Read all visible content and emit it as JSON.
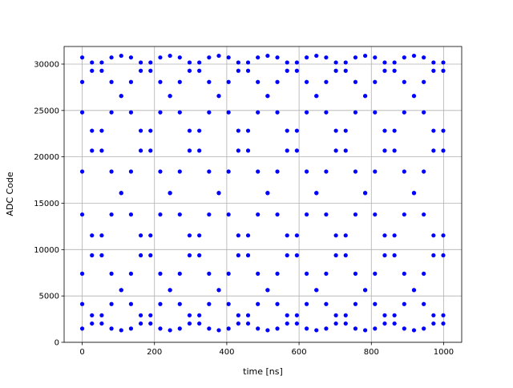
{
  "chart_data": {
    "type": "scatter",
    "x_label": "time [ns]",
    "y_label": "ADC Code",
    "color": "#0000ff",
    "grid": true,
    "xlim": [
      -50,
      1050
    ],
    "ylim": [
      0,
      31900
    ],
    "xticks": [
      0,
      200,
      400,
      600,
      800,
      1000
    ],
    "yticks": [
      0,
      5000,
      10000,
      15000,
      20000,
      25000,
      30000
    ],
    "x": [
      0,
      27,
      54,
      81,
      108,
      135,
      162,
      189,
      216,
      243,
      270,
      297,
      324,
      351,
      378,
      405,
      432,
      459,
      486,
      513,
      540,
      567,
      594,
      621,
      648,
      675,
      702,
      729,
      756,
      783,
      810,
      837,
      864,
      891,
      918,
      945,
      972,
      999
    ],
    "values": [
      [
        30718,
        24799,
        13785,
        4127,
        1482,
        7401,
        18415,
        28073
      ],
      [
        30176,
        22819,
        11527,
        2913,
        2024,
        9381,
        20673,
        29287
      ],
      [
        29287,
        20673,
        9381,
        2024,
        2913,
        11527,
        22819,
        30176
      ],
      [
        28073,
        18415,
        7401,
        1482,
        4127,
        13785,
        24799,
        30718
      ],
      [
        30900,
        26565,
        16100,
        5635,
        1300,
        5635,
        16100,
        26565
      ],
      [
        30718,
        24799,
        13785,
        4127,
        1482,
        7401,
        18415,
        28073
      ],
      [
        30176,
        22819,
        11527,
        2913,
        2024,
        9381,
        20673,
        29287
      ],
      [
        29287,
        20673,
        9381,
        2024,
        2913,
        11527,
        22819,
        30176
      ],
      [
        28073,
        18415,
        7401,
        1482,
        4127,
        13785,
        24799,
        30718
      ],
      [
        30900,
        26565,
        16100,
        5635,
        1300,
        5635,
        16100,
        26565
      ],
      [
        30718,
        24799,
        13785,
        4127,
        1482,
        7401,
        18415,
        28073
      ],
      [
        30176,
        22819,
        11527,
        2913,
        2024,
        9381,
        20673,
        29287
      ],
      [
        29287,
        20673,
        9381,
        2024,
        2913,
        11527,
        22819,
        30176
      ],
      [
        28073,
        18415,
        7401,
        1482,
        4127,
        13785,
        24799,
        30718
      ],
      [
        30900,
        26565,
        16100,
        5635,
        1300,
        5635,
        16100,
        26565
      ],
      [
        30718,
        24799,
        13785,
        4127,
        1482,
        7401,
        18415,
        28073
      ],
      [
        30176,
        22819,
        11527,
        2913,
        2024,
        9381,
        20673,
        29287
      ],
      [
        29287,
        20673,
        9381,
        2024,
        2913,
        11527,
        22819,
        30176
      ],
      [
        28073,
        18415,
        7401,
        1482,
        4127,
        13785,
        24799,
        30718
      ],
      [
        30900,
        26565,
        16100,
        5635,
        1300,
        5635,
        16100,
        26565
      ],
      [
        30718,
        24799,
        13785,
        4127,
        1482,
        7401,
        18415,
        28073
      ],
      [
        30176,
        22819,
        11527,
        2913,
        2024,
        9381,
        20673,
        29287
      ],
      [
        29287,
        20673,
        9381,
        2024,
        2913,
        11527,
        22819,
        30176
      ],
      [
        28073,
        18415,
        7401,
        1482,
        4127,
        13785,
        24799,
        30718
      ],
      [
        30900,
        26565,
        16100,
        5635,
        1300,
        5635,
        16100,
        26565
      ],
      [
        30718,
        24799,
        13785,
        4127,
        1482,
        7401,
        18415,
        28073
      ],
      [
        30176,
        22819,
        11527,
        2913,
        2024,
        9381,
        20673,
        29287
      ],
      [
        29287,
        20673,
        9381,
        2024,
        2913,
        11527,
        22819,
        30176
      ],
      [
        28073,
        18415,
        7401,
        1482,
        4127,
        13785,
        24799,
        30718
      ],
      [
        30900,
        26565,
        16100,
        5635,
        1300,
        5635,
        16100,
        26565
      ],
      [
        30718,
        24799,
        13785,
        4127,
        1482,
        7401,
        18415,
        28073
      ],
      [
        30176,
        22819,
        11527,
        2913,
        2024,
        9381,
        20673,
        29287
      ],
      [
        29287,
        20673,
        9381,
        2024,
        2913,
        11527,
        22819,
        30176
      ],
      [
        28073,
        18415,
        7401,
        1482,
        4127,
        13785,
        24799,
        30718
      ],
      [
        30900,
        26565,
        16100,
        5635,
        1300,
        5635,
        16100,
        26565
      ],
      [
        30718,
        24799,
        13785,
        4127,
        1482,
        7401,
        18415,
        28073
      ],
      [
        30176,
        22819,
        11527,
        2913,
        2024,
        9381,
        20673,
        29287
      ],
      [
        29287,
        20673,
        9381,
        2024,
        2913,
        11527,
        22819,
        30176
      ]
    ]
  }
}
